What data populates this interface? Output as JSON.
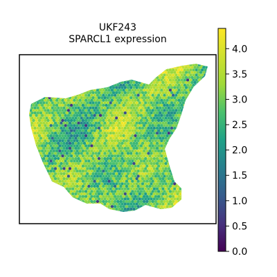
{
  "chart_data": {
    "type": "heatmap",
    "title": "UKF243",
    "subtitle": "SPARCL1 expression",
    "xlabel": "",
    "ylabel": "",
    "grid": false,
    "legend": "colorbar-right",
    "colormap": "viridis",
    "colorbar": {
      "min": 0.0,
      "max": 4.4,
      "ticks": [
        "0.0",
        "0.5",
        "1.0",
        "1.5",
        "2.0",
        "2.5",
        "3.0",
        "3.5",
        "4.0"
      ]
    },
    "value_range_observed": [
      0.5,
      4.4
    ],
    "typical_value": 3.0
  }
}
